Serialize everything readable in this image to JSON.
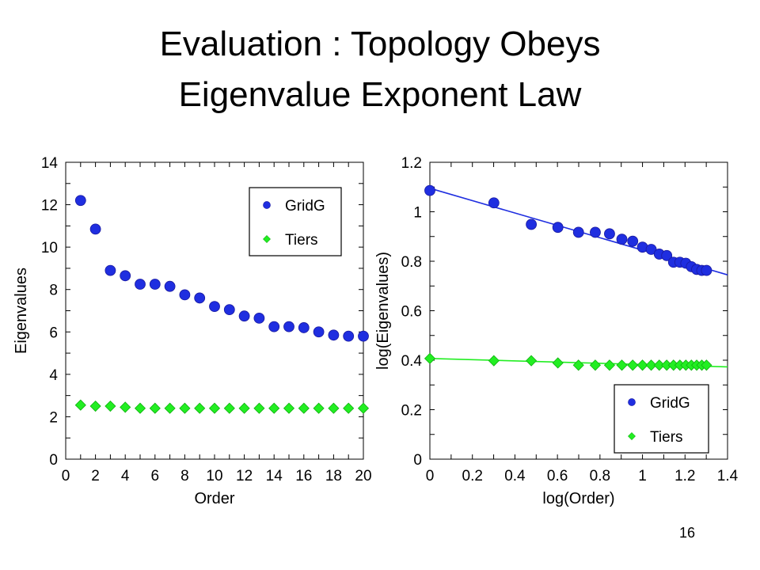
{
  "slide": {
    "title_line1": "Evaluation : Topology Obeys",
    "title_line2": "Eigenvalue Exponent Law",
    "page_number": "16"
  },
  "colors": {
    "gridg": "#1f2ee0",
    "tiers": "#22ee22",
    "text": "#000000"
  },
  "chart_data": [
    {
      "type": "scatter",
      "xlabel": "Order",
      "ylabel": "Eigenvalues",
      "xlim": [
        0,
        20
      ],
      "ylim": [
        0,
        14
      ],
      "xticks": [
        "0",
        "2",
        "4",
        "6",
        "8",
        "10",
        "12",
        "14",
        "16",
        "18",
        "20"
      ],
      "yticks": [
        "0",
        "2",
        "4",
        "6",
        "8",
        "10",
        "12",
        "14"
      ],
      "grid": false,
      "legend_position": "top-right",
      "series": [
        {
          "name": "GridG",
          "marker": "circle",
          "x": [
            1,
            2,
            3,
            4,
            5,
            6,
            7,
            8,
            9,
            10,
            11,
            12,
            13,
            14,
            15,
            16,
            17,
            18,
            19,
            20
          ],
          "y": [
            12.2,
            10.85,
            8.9,
            8.65,
            8.25,
            8.25,
            8.15,
            7.75,
            7.6,
            7.2,
            7.05,
            6.75,
            6.65,
            6.25,
            6.25,
            6.2,
            6.0,
            5.85,
            5.8,
            5.8
          ]
        },
        {
          "name": "Tiers",
          "marker": "diamond",
          "x": [
            1,
            2,
            3,
            4,
            5,
            6,
            7,
            8,
            9,
            10,
            11,
            12,
            13,
            14,
            15,
            16,
            17,
            18,
            19,
            20
          ],
          "y": [
            2.55,
            2.5,
            2.5,
            2.45,
            2.4,
            2.4,
            2.4,
            2.4,
            2.4,
            2.4,
            2.4,
            2.4,
            2.4,
            2.4,
            2.4,
            2.4,
            2.4,
            2.4,
            2.4,
            2.4
          ]
        }
      ]
    },
    {
      "type": "scatter",
      "xlabel": "log(Order)",
      "ylabel": "log(Eigenvalues)",
      "xlim": [
        0,
        1.4
      ],
      "ylim": [
        0,
        1.2
      ],
      "xticks": [
        "0",
        "0.2",
        "0.4",
        "0.6",
        "0.8",
        "1",
        "1.2",
        "1.4"
      ],
      "yticks": [
        "0",
        "0.2",
        "0.4",
        "0.6",
        "0.8",
        "1",
        "1.2"
      ],
      "grid": false,
      "legend_position": "bottom-right",
      "series": [
        {
          "name": "GridG",
          "marker": "circle",
          "x": [
            0,
            0.301,
            0.477,
            0.602,
            0.699,
            0.778,
            0.845,
            0.903,
            0.954,
            1.0,
            1.041,
            1.079,
            1.114,
            1.146,
            1.176,
            1.204,
            1.23,
            1.255,
            1.279,
            1.301
          ],
          "y": [
            1.086,
            1.036,
            0.949,
            0.937,
            0.917,
            0.917,
            0.911,
            0.889,
            0.881,
            0.857,
            0.848,
            0.829,
            0.823,
            0.796,
            0.796,
            0.792,
            0.778,
            0.767,
            0.763,
            0.763
          ],
          "fit": {
            "x": [
              0,
              1.4
            ],
            "y": [
              1.095,
              0.745
            ]
          }
        },
        {
          "name": "Tiers",
          "marker": "diamond",
          "x": [
            0,
            0.301,
            0.477,
            0.602,
            0.699,
            0.778,
            0.845,
            0.903,
            0.954,
            1.0,
            1.041,
            1.079,
            1.114,
            1.146,
            1.176,
            1.204,
            1.23,
            1.255,
            1.279,
            1.301
          ],
          "y": [
            0.407,
            0.398,
            0.398,
            0.389,
            0.38,
            0.38,
            0.38,
            0.38,
            0.38,
            0.38,
            0.38,
            0.38,
            0.38,
            0.38,
            0.38,
            0.38,
            0.38,
            0.38,
            0.38,
            0.38
          ],
          "fit": {
            "x": [
              0,
              1.4
            ],
            "y": [
              0.407,
              0.373
            ]
          }
        }
      ]
    }
  ]
}
